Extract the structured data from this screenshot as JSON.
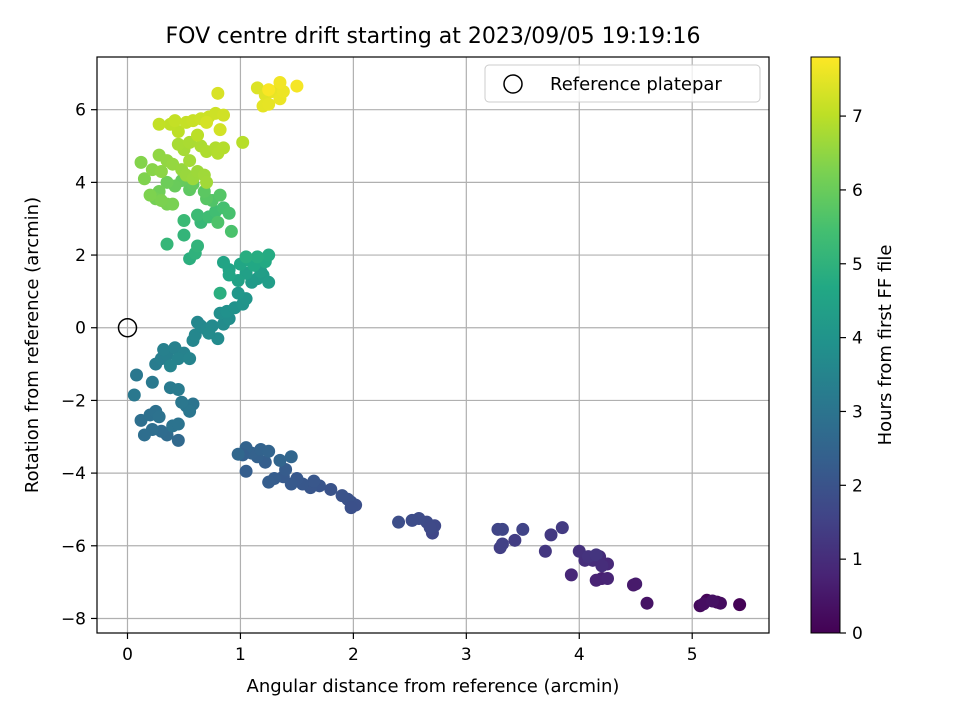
{
  "chart_data": {
    "type": "scatter",
    "title": "FOV centre drift starting at 2023/09/05 19:19:16",
    "xlabel": "Angular distance from reference (arcmin)",
    "ylabel": "Rotation from reference (arcmin)",
    "xlim": [
      -0.27,
      5.68
    ],
    "ylim": [
      -8.4,
      7.45
    ],
    "xticks": [
      0,
      1,
      2,
      3,
      4,
      5
    ],
    "yticks": [
      -8,
      -6,
      -4,
      -2,
      0,
      2,
      4,
      6
    ],
    "grid": true,
    "legend": {
      "position": "top-right",
      "entries": [
        "Reference platepar"
      ]
    },
    "reference_point": {
      "x": 0,
      "y": 0,
      "label": "Reference platepar"
    },
    "colorbar": {
      "label": "Hours from first FF file",
      "colormap": "viridis",
      "range": [
        0,
        7.8
      ],
      "ticks": [
        0,
        1,
        2,
        3,
        4,
        5,
        6,
        7
      ]
    },
    "series": [
      {
        "points": [
          {
            "x": 5.42,
            "y": -7.62,
            "t": 0.05
          },
          {
            "x": 5.22,
            "y": -7.55,
            "t": 0.15
          },
          {
            "x": 5.13,
            "y": -7.5,
            "t": 0.1
          },
          {
            "x": 5.07,
            "y": -7.65,
            "t": 0.2
          },
          {
            "x": 5.1,
            "y": -7.6,
            "t": 0.3
          },
          {
            "x": 5.25,
            "y": -7.58,
            "t": 0.25
          },
          {
            "x": 5.18,
            "y": -7.52,
            "t": 0.35
          },
          {
            "x": 4.6,
            "y": -7.58,
            "t": 0.4
          },
          {
            "x": 4.5,
            "y": -7.05,
            "t": 0.6
          },
          {
            "x": 4.48,
            "y": -7.08,
            "t": 0.55
          },
          {
            "x": 4.2,
            "y": -6.9,
            "t": 0.7
          },
          {
            "x": 4.15,
            "y": -6.95,
            "t": 0.75
          },
          {
            "x": 4.25,
            "y": -6.9,
            "t": 0.8
          },
          {
            "x": 3.93,
            "y": -6.8,
            "t": 0.85
          },
          {
            "x": 4.25,
            "y": -6.5,
            "t": 0.9
          },
          {
            "x": 4.18,
            "y": -6.3,
            "t": 0.95
          },
          {
            "x": 4.12,
            "y": -6.4,
            "t": 1.0
          },
          {
            "x": 4.05,
            "y": -6.4,
            "t": 1.05
          },
          {
            "x": 4.0,
            "y": -6.15,
            "t": 1.1
          },
          {
            "x": 4.08,
            "y": -6.3,
            "t": 1.15
          },
          {
            "x": 4.15,
            "y": -6.25,
            "t": 1.2
          },
          {
            "x": 4.2,
            "y": -6.55,
            "t": 1.0
          },
          {
            "x": 3.7,
            "y": -6.15,
            "t": 1.25
          },
          {
            "x": 3.75,
            "y": -5.7,
            "t": 1.3
          },
          {
            "x": 3.85,
            "y": -5.5,
            "t": 1.35
          },
          {
            "x": 3.43,
            "y": -5.85,
            "t": 1.4
          },
          {
            "x": 3.3,
            "y": -6.05,
            "t": 1.45
          },
          {
            "x": 3.32,
            "y": -5.95,
            "t": 1.5
          },
          {
            "x": 3.5,
            "y": -5.55,
            "t": 1.55
          },
          {
            "x": 3.28,
            "y": -5.55,
            "t": 1.6
          },
          {
            "x": 3.32,
            "y": -5.55,
            "t": 1.62
          },
          {
            "x": 2.7,
            "y": -5.65,
            "t": 1.65
          },
          {
            "x": 2.72,
            "y": -5.45,
            "t": 1.7
          },
          {
            "x": 2.65,
            "y": -5.35,
            "t": 1.75
          },
          {
            "x": 2.58,
            "y": -5.25,
            "t": 1.78
          },
          {
            "x": 2.52,
            "y": -5.3,
            "t": 1.8
          },
          {
            "x": 2.4,
            "y": -5.35,
            "t": 1.85
          },
          {
            "x": 2.68,
            "y": -5.5,
            "t": 1.72
          },
          {
            "x": 2.02,
            "y": -4.88,
            "t": 1.9
          },
          {
            "x": 1.98,
            "y": -4.8,
            "t": 1.93
          },
          {
            "x": 1.95,
            "y": -4.72,
            "t": 1.95
          },
          {
            "x": 1.9,
            "y": -4.62,
            "t": 1.98
          },
          {
            "x": 1.98,
            "y": -4.95,
            "t": 1.92
          },
          {
            "x": 1.8,
            "y": -4.45,
            "t": 2.0
          },
          {
            "x": 1.7,
            "y": -4.35,
            "t": 2.05
          },
          {
            "x": 1.62,
            "y": -4.4,
            "t": 2.08
          },
          {
            "x": 1.65,
            "y": -4.22,
            "t": 2.1
          },
          {
            "x": 1.55,
            "y": -4.3,
            "t": 2.12
          },
          {
            "x": 1.5,
            "y": -4.15,
            "t": 2.15
          },
          {
            "x": 1.45,
            "y": -4.3,
            "t": 2.18
          },
          {
            "x": 1.38,
            "y": -4.1,
            "t": 2.2
          },
          {
            "x": 1.4,
            "y": -3.9,
            "t": 2.25
          },
          {
            "x": 1.3,
            "y": -4.15,
            "t": 2.28
          },
          {
            "x": 1.25,
            "y": -4.25,
            "t": 2.3
          },
          {
            "x": 1.22,
            "y": -3.7,
            "t": 2.35
          },
          {
            "x": 1.15,
            "y": -3.55,
            "t": 2.4
          },
          {
            "x": 1.1,
            "y": -3.45,
            "t": 2.42
          },
          {
            "x": 1.05,
            "y": -3.3,
            "t": 2.45
          },
          {
            "x": 1.18,
            "y": -3.35,
            "t": 2.48
          },
          {
            "x": 1.25,
            "y": -3.4,
            "t": 2.5
          },
          {
            "x": 1.35,
            "y": -3.65,
            "t": 2.52
          },
          {
            "x": 1.45,
            "y": -3.55,
            "t": 2.55
          },
          {
            "x": 1.02,
            "y": -3.5,
            "t": 2.38
          },
          {
            "x": 1.05,
            "y": -3.95,
            "t": 2.32
          },
          {
            "x": 0.98,
            "y": -3.48,
            "t": 2.6
          },
          {
            "x": 0.45,
            "y": -3.1,
            "t": 2.65
          },
          {
            "x": 0.35,
            "y": -2.95,
            "t": 2.7
          },
          {
            "x": 0.3,
            "y": -2.85,
            "t": 2.75
          },
          {
            "x": 0.22,
            "y": -2.8,
            "t": 2.8
          },
          {
            "x": 0.15,
            "y": -2.95,
            "t": 2.82
          },
          {
            "x": 0.12,
            "y": -2.55,
            "t": 2.85
          },
          {
            "x": 0.2,
            "y": -2.4,
            "t": 2.88
          },
          {
            "x": 0.25,
            "y": -2.3,
            "t": 2.9
          },
          {
            "x": 0.28,
            "y": -2.45,
            "t": 2.92
          },
          {
            "x": 0.4,
            "y": -2.7,
            "t": 2.95
          },
          {
            "x": 0.45,
            "y": -2.65,
            "t": 2.97
          },
          {
            "x": 0.58,
            "y": -2.1,
            "t": 3.0
          },
          {
            "x": 0.52,
            "y": -2.15,
            "t": 3.02
          },
          {
            "x": 0.55,
            "y": -2.3,
            "t": 3.05
          },
          {
            "x": 0.48,
            "y": -2.05,
            "t": 3.08
          },
          {
            "x": 0.08,
            "y": -1.3,
            "t": 3.1
          },
          {
            "x": 0.06,
            "y": -1.85,
            "t": 3.12
          },
          {
            "x": 0.22,
            "y": -1.5,
            "t": 3.15
          },
          {
            "x": 0.38,
            "y": -1.65,
            "t": 3.18
          },
          {
            "x": 0.45,
            "y": -1.7,
            "t": 3.2
          },
          {
            "x": 0.25,
            "y": -1.0,
            "t": 3.25
          },
          {
            "x": 0.3,
            "y": -0.85,
            "t": 3.3
          },
          {
            "x": 0.35,
            "y": -0.75,
            "t": 3.35
          },
          {
            "x": 0.32,
            "y": -0.6,
            "t": 3.38
          },
          {
            "x": 0.42,
            "y": -0.55,
            "t": 3.4
          },
          {
            "x": 0.5,
            "y": -0.7,
            "t": 3.42
          },
          {
            "x": 0.45,
            "y": -0.85,
            "t": 3.45
          },
          {
            "x": 0.38,
            "y": -1.05,
            "t": 3.48
          },
          {
            "x": 0.55,
            "y": -0.85,
            "t": 3.5
          },
          {
            "x": 0.58,
            "y": -0.35,
            "t": 3.55
          },
          {
            "x": 0.6,
            "y": -0.2,
            "t": 3.58
          },
          {
            "x": 0.62,
            "y": 0.15,
            "t": 3.6
          },
          {
            "x": 0.65,
            "y": 0.05,
            "t": 3.62
          },
          {
            "x": 0.7,
            "y": -0.05,
            "t": 3.65
          },
          {
            "x": 0.75,
            "y": 0.05,
            "t": 3.68
          },
          {
            "x": 0.8,
            "y": -0.3,
            "t": 3.7
          },
          {
            "x": 0.72,
            "y": -0.15,
            "t": 3.72
          },
          {
            "x": 0.85,
            "y": 0.1,
            "t": 3.75
          },
          {
            "x": 0.9,
            "y": 0.25,
            "t": 3.8
          },
          {
            "x": 0.82,
            "y": 0.4,
            "t": 3.85
          },
          {
            "x": 0.88,
            "y": 0.45,
            "t": 3.9
          },
          {
            "x": 0.95,
            "y": 0.55,
            "t": 3.95
          },
          {
            "x": 1.02,
            "y": 0.65,
            "t": 4.0
          },
          {
            "x": 1.05,
            "y": 0.8,
            "t": 4.05
          },
          {
            "x": 0.98,
            "y": 0.95,
            "t": 4.1
          },
          {
            "x": 1.1,
            "y": 1.25,
            "t": 4.2
          },
          {
            "x": 1.15,
            "y": 1.35,
            "t": 4.25
          },
          {
            "x": 1.2,
            "y": 1.45,
            "t": 4.28
          },
          {
            "x": 1.25,
            "y": 1.25,
            "t": 4.3
          },
          {
            "x": 1.18,
            "y": 1.55,
            "t": 4.35
          },
          {
            "x": 1.05,
            "y": 1.5,
            "t": 4.4
          },
          {
            "x": 0.98,
            "y": 1.3,
            "t": 4.45
          },
          {
            "x": 0.9,
            "y": 1.6,
            "t": 4.5
          },
          {
            "x": 0.85,
            "y": 1.8,
            "t": 4.55
          },
          {
            "x": 0.9,
            "y": 1.45,
            "t": 4.58
          },
          {
            "x": 1.0,
            "y": 1.75,
            "t": 4.6
          },
          {
            "x": 1.08,
            "y": 1.85,
            "t": 4.65
          },
          {
            "x": 1.12,
            "y": 1.72,
            "t": 4.68
          },
          {
            "x": 1.22,
            "y": 1.82,
            "t": 4.7
          },
          {
            "x": 1.25,
            "y": 2.0,
            "t": 4.75
          },
          {
            "x": 1.15,
            "y": 1.95,
            "t": 4.8
          },
          {
            "x": 1.05,
            "y": 1.95,
            "t": 4.85
          },
          {
            "x": 0.82,
            "y": 0.95,
            "t": 4.88
          },
          {
            "x": 0.55,
            "y": 1.9,
            "t": 4.9
          },
          {
            "x": 0.6,
            "y": 2.05,
            "t": 5.0
          },
          {
            "x": 0.62,
            "y": 2.25,
            "t": 5.05
          },
          {
            "x": 0.5,
            "y": 2.55,
            "t": 5.1
          },
          {
            "x": 0.35,
            "y": 2.3,
            "t": 5.15
          },
          {
            "x": 0.65,
            "y": 2.9,
            "t": 5.2
          },
          {
            "x": 0.5,
            "y": 2.95,
            "t": 5.25
          },
          {
            "x": 0.62,
            "y": 3.1,
            "t": 5.3
          },
          {
            "x": 0.72,
            "y": 3.05,
            "t": 5.35
          },
          {
            "x": 0.78,
            "y": 3.2,
            "t": 5.4
          },
          {
            "x": 0.85,
            "y": 3.3,
            "t": 5.45
          },
          {
            "x": 0.9,
            "y": 3.15,
            "t": 5.5
          },
          {
            "x": 0.92,
            "y": 2.65,
            "t": 5.55
          },
          {
            "x": 0.8,
            "y": 2.9,
            "t": 5.6
          },
          {
            "x": 0.75,
            "y": 3.5,
            "t": 5.65
          },
          {
            "x": 0.82,
            "y": 3.65,
            "t": 5.7
          },
          {
            "x": 0.7,
            "y": 3.55,
            "t": 5.75
          },
          {
            "x": 0.68,
            "y": 3.75,
            "t": 5.8
          },
          {
            "x": 0.55,
            "y": 3.8,
            "t": 5.85
          },
          {
            "x": 0.58,
            "y": 3.95,
            "t": 5.9
          },
          {
            "x": 0.48,
            "y": 4.05,
            "t": 5.95
          },
          {
            "x": 0.42,
            "y": 3.9,
            "t": 6.0
          },
          {
            "x": 0.35,
            "y": 4.0,
            "t": 6.05
          },
          {
            "x": 0.28,
            "y": 3.75,
            "t": 6.1
          },
          {
            "x": 0.25,
            "y": 3.55,
            "t": 6.15
          },
          {
            "x": 0.35,
            "y": 3.4,
            "t": 6.2
          },
          {
            "x": 0.4,
            "y": 3.4,
            "t": 6.22
          },
          {
            "x": 0.3,
            "y": 3.5,
            "t": 6.25
          },
          {
            "x": 0.2,
            "y": 3.65,
            "t": 6.28
          },
          {
            "x": 0.15,
            "y": 4.1,
            "t": 6.3
          },
          {
            "x": 0.12,
            "y": 4.55,
            "t": 6.35
          },
          {
            "x": 0.22,
            "y": 4.35,
            "t": 6.4
          },
          {
            "x": 0.3,
            "y": 4.3,
            "t": 6.45
          },
          {
            "x": 0.28,
            "y": 4.75,
            "t": 6.5
          },
          {
            "x": 0.35,
            "y": 4.6,
            "t": 6.52
          },
          {
            "x": 0.4,
            "y": 4.5,
            "t": 6.55
          },
          {
            "x": 0.48,
            "y": 4.35,
            "t": 6.58
          },
          {
            "x": 0.52,
            "y": 4.2,
            "t": 6.6
          },
          {
            "x": 0.58,
            "y": 4.1,
            "t": 6.62
          },
          {
            "x": 0.62,
            "y": 4.3,
            "t": 6.65
          },
          {
            "x": 0.68,
            "y": 4.2,
            "t": 6.68
          },
          {
            "x": 0.7,
            "y": 4.0,
            "t": 6.7
          },
          {
            "x": 0.55,
            "y": 4.6,
            "t": 6.72
          },
          {
            "x": 0.5,
            "y": 4.9,
            "t": 6.75
          },
          {
            "x": 0.45,
            "y": 5.05,
            "t": 6.78
          },
          {
            "x": 0.55,
            "y": 5.1,
            "t": 6.8
          },
          {
            "x": 0.65,
            "y": 5.0,
            "t": 6.82
          },
          {
            "x": 0.7,
            "y": 4.85,
            "t": 6.85
          },
          {
            "x": 0.78,
            "y": 4.95,
            "t": 6.88
          },
          {
            "x": 0.8,
            "y": 4.8,
            "t": 6.9
          },
          {
            "x": 0.85,
            "y": 4.95,
            "t": 6.92
          },
          {
            "x": 1.02,
            "y": 5.1,
            "t": 6.95
          },
          {
            "x": 0.62,
            "y": 5.3,
            "t": 7.0
          },
          {
            "x": 0.45,
            "y": 5.4,
            "t": 7.02
          },
          {
            "x": 0.38,
            "y": 5.6,
            "t": 7.05
          },
          {
            "x": 0.28,
            "y": 5.6,
            "t": 7.08
          },
          {
            "x": 0.42,
            "y": 5.7,
            "t": 7.1
          },
          {
            "x": 0.52,
            "y": 5.65,
            "t": 7.12
          },
          {
            "x": 0.58,
            "y": 5.7,
            "t": 7.15
          },
          {
            "x": 0.65,
            "y": 5.75,
            "t": 7.18
          },
          {
            "x": 0.72,
            "y": 5.8,
            "t": 7.2
          },
          {
            "x": 0.78,
            "y": 5.9,
            "t": 7.22
          },
          {
            "x": 0.85,
            "y": 5.85,
            "t": 7.25
          },
          {
            "x": 0.82,
            "y": 5.45,
            "t": 7.28
          },
          {
            "x": 0.7,
            "y": 5.65,
            "t": 7.3
          },
          {
            "x": 0.8,
            "y": 6.45,
            "t": 7.35
          },
          {
            "x": 1.15,
            "y": 6.6,
            "t": 7.4
          },
          {
            "x": 1.22,
            "y": 6.4,
            "t": 7.45
          },
          {
            "x": 1.2,
            "y": 6.1,
            "t": 7.5
          },
          {
            "x": 1.25,
            "y": 6.15,
            "t": 7.52
          },
          {
            "x": 1.28,
            "y": 6.5,
            "t": 7.55
          },
          {
            "x": 1.35,
            "y": 6.3,
            "t": 7.58
          },
          {
            "x": 1.38,
            "y": 6.5,
            "t": 7.6
          },
          {
            "x": 1.35,
            "y": 6.75,
            "t": 7.65
          },
          {
            "x": 1.5,
            "y": 6.65,
            "t": 7.7
          },
          {
            "x": 1.25,
            "y": 6.55,
            "t": 7.75
          }
        ]
      }
    ]
  }
}
